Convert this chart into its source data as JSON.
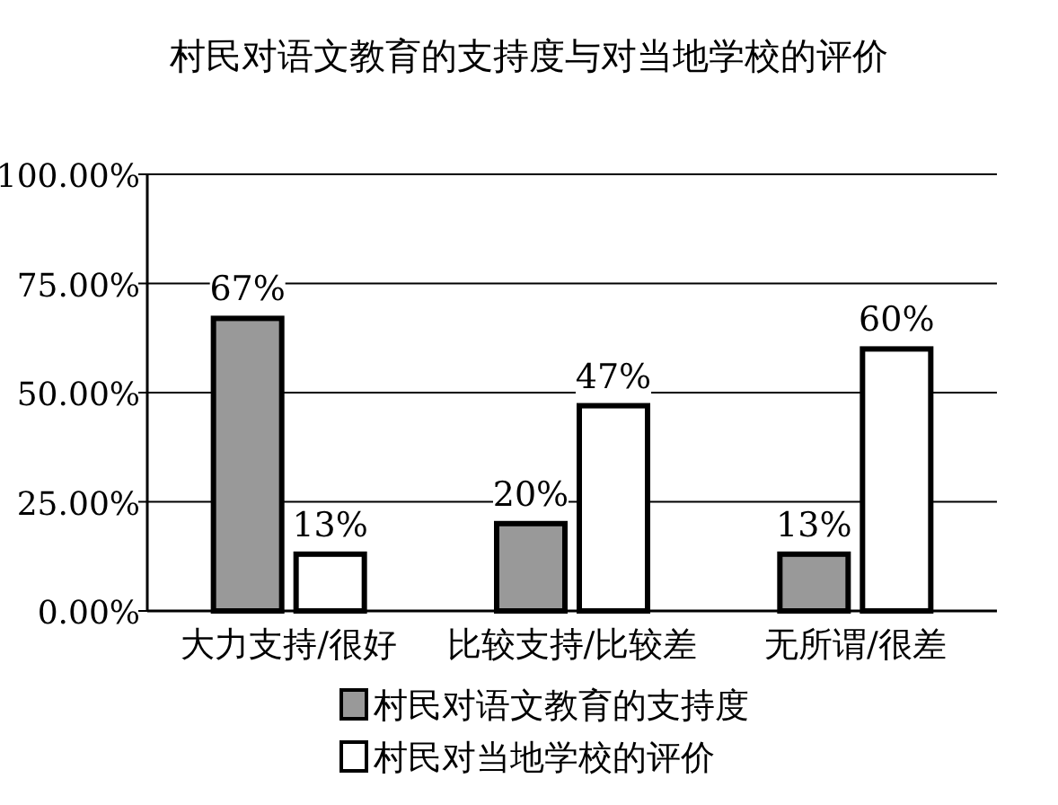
{
  "chart_data": {
    "type": "bar",
    "title": "村民对语文教育的支持度与对当地学校的评价",
    "categories": [
      "大力支持/很好",
      "比较支持/比较差",
      "无所谓/很差"
    ],
    "series": [
      {
        "name": "村民对语文教育的支持度",
        "color": "#999999",
        "values": [
          67,
          20,
          13
        ],
        "value_labels": [
          "67%",
          "20%",
          "13%"
        ]
      },
      {
        "name": "村民对当地学校的评价",
        "color": "#ffffff",
        "values": [
          13,
          47,
          60
        ],
        "value_labels": [
          "13%",
          "47%",
          "60%"
        ]
      }
    ],
    "ylim": [
      0,
      100
    ],
    "yticks": [
      {
        "value": 0,
        "label": "0.00%"
      },
      {
        "value": 25,
        "label": "25.00%"
      },
      {
        "value": 50,
        "label": "50.00%"
      },
      {
        "value": 75,
        "label": "75.00%"
      },
      {
        "value": 100,
        "label": "100.00%"
      }
    ],
    "grid": "y",
    "legend": "bottom"
  }
}
